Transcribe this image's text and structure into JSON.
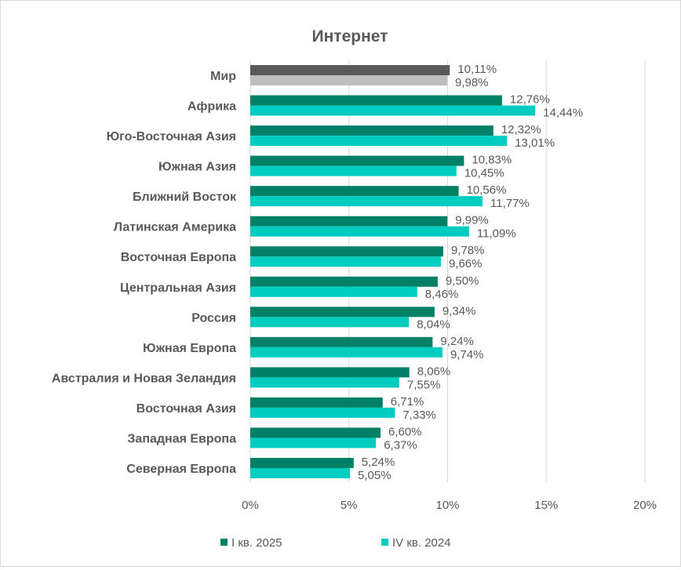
{
  "chart_data": {
    "type": "bar",
    "orientation": "horizontal",
    "title": "Интернет",
    "categories": [
      "Мир",
      "Африка",
      "Юго-Восточная Азия",
      "Южная Азия",
      "Ближний Восток",
      "Латинская Америка",
      "Восточная Европа",
      "Центральная Азия",
      "Россия",
      "Южная Европа",
      "Австралия и Новая Зеландия",
      "Восточная Азия",
      "Западная Европа",
      "Северная Европа"
    ],
    "series": [
      {
        "name": "I кв. 2025",
        "color": "#008066",
        "values": [
          10.11,
          12.76,
          12.32,
          10.83,
          10.56,
          9.99,
          9.78,
          9.5,
          9.34,
          9.24,
          8.06,
          6.71,
          6.6,
          5.24
        ]
      },
      {
        "name": "IV кв. 2024",
        "color": "#00CDC0",
        "values": [
          9.98,
          14.44,
          13.01,
          10.45,
          11.77,
          11.09,
          9.66,
          8.46,
          8.04,
          9.74,
          7.55,
          7.33,
          6.37,
          5.05
        ]
      }
    ],
    "highlight": {
      "category": "Мир",
      "colors": [
        "#595959",
        "#BFBFBF"
      ]
    },
    "xlim": [
      0,
      20
    ],
    "xticks": [
      "0%",
      "5%",
      "10%",
      "15%",
      "20%"
    ],
    "grid": true,
    "legend_position": "bottom",
    "data_labels": true
  }
}
